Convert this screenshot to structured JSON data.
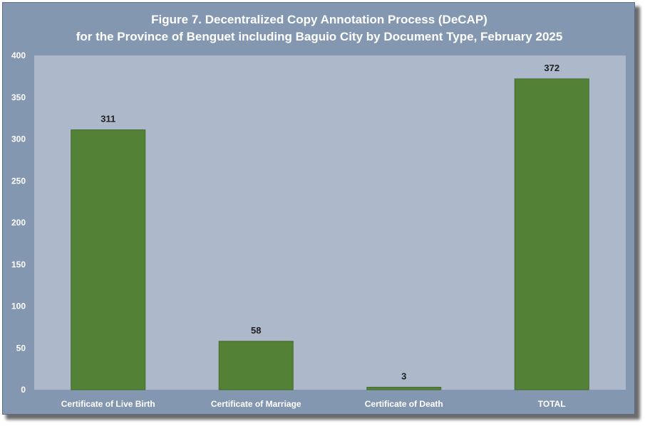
{
  "chart_data": {
    "type": "bar",
    "title": "Figure 7. Decentralized Copy Annotation Process (DeCAP)",
    "subtitle": "for the Province of Benguet including Baguio City by Document Type, February 2025",
    "categories": [
      "Certificate of Live Birth",
      "Certificate of Marriage",
      "Certificate of Death",
      "TOTAL"
    ],
    "values": [
      311,
      58,
      3,
      372
    ],
    "data_labels": [
      "311",
      "58",
      "3",
      "372"
    ],
    "yticks": [
      "0",
      "50",
      "100",
      "150",
      "200",
      "250",
      "300",
      "350",
      "400"
    ],
    "ylim": [
      0,
      400
    ],
    "grid": false,
    "legend": "none",
    "colors": {
      "bar": "#538135",
      "bar_edge": "#456b2c",
      "plot_bg": "#adb9ca",
      "frame_bg": "#8497b0",
      "text": "#ffffff",
      "label": "#1f1f1f"
    }
  }
}
